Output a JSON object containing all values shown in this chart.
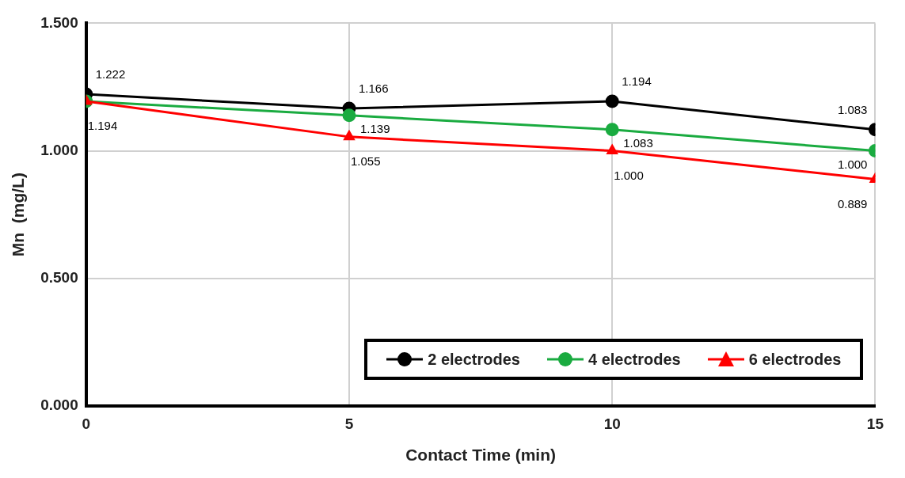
{
  "chart_data": {
    "type": "line",
    "xlabel": "Contact Time (min)",
    "ylabel": "Mn  (mg/L)",
    "x": [
      0,
      5,
      10,
      15
    ],
    "series": [
      {
        "name": "2 electrodes",
        "color": "#000000",
        "marker": "circle",
        "values": [
          1.222,
          1.166,
          1.194,
          1.083
        ],
        "value_labels": [
          "1.222",
          "1.166",
          "1.194",
          "1.083"
        ]
      },
      {
        "name": "4 electrodes",
        "color": "#1aab40",
        "marker": "circle",
        "values": [
          1.194,
          1.139,
          1.083,
          1.0
        ],
        "value_labels": [
          null,
          "1.139",
          "1.083",
          "1.000"
        ]
      },
      {
        "name": "6 electrodes",
        "color": "#ff0000",
        "marker": "triangle",
        "values": [
          1.194,
          1.055,
          1.0,
          0.889
        ],
        "value_labels": [
          "1.194",
          "1.055",
          "1.000",
          "0.889"
        ]
      }
    ],
    "xlim": [
      0,
      15
    ],
    "xticks": [
      0,
      5,
      10,
      15
    ],
    "ylim": [
      0,
      1.5
    ],
    "yticks": [
      {
        "value": 0,
        "label": "0.000"
      },
      {
        "value": 0.5,
        "label": "0.500"
      },
      {
        "value": 1,
        "label": "1.000"
      },
      {
        "value": 1.5,
        "label": "1.500"
      }
    ],
    "grid": true,
    "legend": "bottom right",
    "line_style": "solid"
  }
}
